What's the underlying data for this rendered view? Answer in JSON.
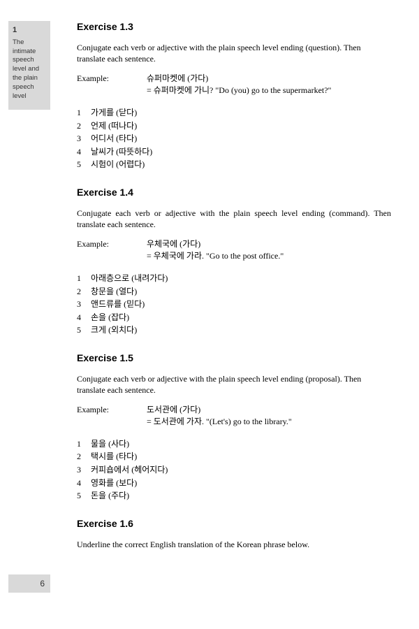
{
  "sidebar": {
    "chapter_number": "1",
    "chapter_title": "The intimate speech level and the plain speech level"
  },
  "page_number": "6",
  "exercises": [
    {
      "title": "Exercise 1.3",
      "instruction": "Conjugate each verb or adjective with the plain speech level ending (question). Then translate each sentence.",
      "instruction_justify": false,
      "example_label": "Example:",
      "example_line1": "슈퍼마켓에 (가다)",
      "example_line2": "= 슈퍼마켓에 가니? \"Do (you) go to the supermarket?\"",
      "items": [
        {
          "n": "1",
          "t": "가게를 (닫다)"
        },
        {
          "n": "2",
          "t": "언제 (떠나다)"
        },
        {
          "n": "3",
          "t": "어디서 (타다)"
        },
        {
          "n": "4",
          "t": "날씨가 (따뜻하다)"
        },
        {
          "n": "5",
          "t": "시험이 (어렵다)"
        }
      ]
    },
    {
      "title": "Exercise 1.4",
      "instruction": "Conjugate each verb or adjective with the plain speech level ending (command). Then translate each sentence.",
      "instruction_justify": true,
      "example_label": "Example:",
      "example_line1": "우체국에 (가다)",
      "example_line2": "= 우체국에 가라. \"Go to the post office.\"",
      "items": [
        {
          "n": "1",
          "t": "아래층으로 (내려가다)"
        },
        {
          "n": "2",
          "t": "창문을 (열다)"
        },
        {
          "n": "3",
          "t": "앤드류를 (믿다)"
        },
        {
          "n": "4",
          "t": "손을 (잡다)"
        },
        {
          "n": "5",
          "t": "크게 (외치다)"
        }
      ]
    },
    {
      "title": "Exercise 1.5",
      "instruction": "Conjugate each verb or adjective with the plain speech level ending (proposal). Then translate each sentence.",
      "instruction_justify": false,
      "example_label": "Example:",
      "example_line1": "도서관에 (가다)",
      "example_line2": "= 도서관에 가자. \"(Let's) go to the library.\"",
      "items": [
        {
          "n": "1",
          "t": "물을 (사다)"
        },
        {
          "n": "2",
          "t": "택시를 (타다)"
        },
        {
          "n": "3",
          "t": "커피숍에서 (헤어지다)"
        },
        {
          "n": "4",
          "t": "영화를 (보다)"
        },
        {
          "n": "5",
          "t": "돈을 (주다)"
        }
      ]
    },
    {
      "title": "Exercise 1.6",
      "instruction": "Underline the correct English translation of the Korean phrase below.",
      "instruction_justify": false,
      "example_label": "",
      "example_line1": "",
      "example_line2": "",
      "items": []
    }
  ]
}
